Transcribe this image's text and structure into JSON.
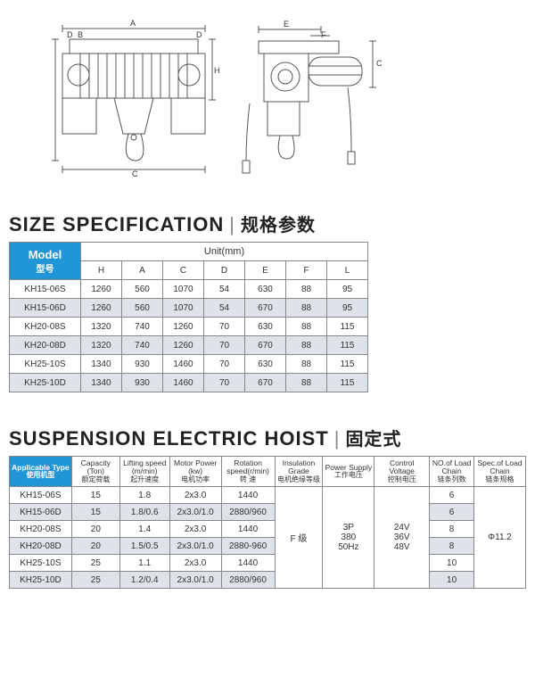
{
  "diagram": {
    "labels": {
      "A": "A",
      "B": "B",
      "C": "C",
      "D": "D",
      "E": "E",
      "F": "F",
      "H": "H"
    }
  },
  "size_spec": {
    "title_en": "SIZE SPECIFICATION",
    "title_cn": "规格参数",
    "model_label_en": "Model",
    "model_label_cn": "型号",
    "unit_label": "Unit(mm)",
    "columns": [
      "H",
      "A",
      "C",
      "D",
      "E",
      "F",
      "L"
    ],
    "rows": [
      {
        "model": "KH15-06S",
        "vals": [
          "1260",
          "560",
          "1070",
          "54",
          "630",
          "88",
          "95"
        ]
      },
      {
        "model": "KH15-06D",
        "vals": [
          "1260",
          "560",
          "1070",
          "54",
          "670",
          "88",
          "95"
        ]
      },
      {
        "model": "KH20-08S",
        "vals": [
          "1320",
          "740",
          "1260",
          "70",
          "630",
          "88",
          "115"
        ]
      },
      {
        "model": "KH20-08D",
        "vals": [
          "1320",
          "740",
          "1260",
          "70",
          "670",
          "88",
          "115"
        ]
      },
      {
        "model": "KH25-10S",
        "vals": [
          "1340",
          "930",
          "1460",
          "70",
          "630",
          "88",
          "115"
        ]
      },
      {
        "model": "KH25-10D",
        "vals": [
          "1340",
          "930",
          "1460",
          "70",
          "670",
          "88",
          "115"
        ]
      }
    ]
  },
  "hoist": {
    "title_en": "SUSPENSION ELECTRIC HOIST",
    "title_cn": "固定式",
    "columns": [
      {
        "en": "Applicable Type",
        "cn": "使用机型"
      },
      {
        "en": "Capacity (Ton)",
        "cn": "额定荷载"
      },
      {
        "en": "Lifting speed (m/min)",
        "cn": "起升速度"
      },
      {
        "en": "Motor Power (kw)",
        "cn": "电机功率"
      },
      {
        "en": "Rotation speed(r/min)",
        "cn": "转 速"
      },
      {
        "en": "Insulation Grade",
        "cn": "电机绝缘等级"
      },
      {
        "en": "Power Supply",
        "cn": "工作电压"
      },
      {
        "en": "Control Voltage",
        "cn": "控制电压"
      },
      {
        "en": "NO.of Load Chain",
        "cn": "链条列数"
      },
      {
        "en": "Spec.of Load Chain",
        "cn": "链条规格"
      }
    ],
    "rows": [
      {
        "type": "KH15-06S",
        "cap": "15",
        "lift": "1.8",
        "motor": "2x3.0",
        "rot": "1440",
        "chain": "6"
      },
      {
        "type": "KH15-06D",
        "cap": "15",
        "lift": "1.8/0.6",
        "motor": "2x3.0/1.0",
        "rot": "2880/960",
        "chain": "6"
      },
      {
        "type": "KH20-08S",
        "cap": "20",
        "lift": "1.4",
        "motor": "2x3.0",
        "rot": "1440",
        "chain": "8"
      },
      {
        "type": "KH20-08D",
        "cap": "20",
        "lift": "1.5/0.5",
        "motor": "2x3.0/1.0",
        "rot": "2880-960",
        "chain": "8"
      },
      {
        "type": "KH25-10S",
        "cap": "25",
        "lift": "1.1",
        "motor": "2x3.0",
        "rot": "1440",
        "chain": "10"
      },
      {
        "type": "KH25-10D",
        "cap": "25",
        "lift": "1.2/0.4",
        "motor": "2x3.0/1.0",
        "rot": "2880/960",
        "chain": "10"
      }
    ],
    "insulation": "F 级",
    "power": "3P\n380\n50Hz",
    "voltage": "24V\n36V\n48V",
    "chain_spec": "Φ11.2"
  },
  "colors": {
    "header_blue": "#2196d6",
    "alt_row": "#dde3e8",
    "border": "#888888",
    "text": "#333333"
  }
}
